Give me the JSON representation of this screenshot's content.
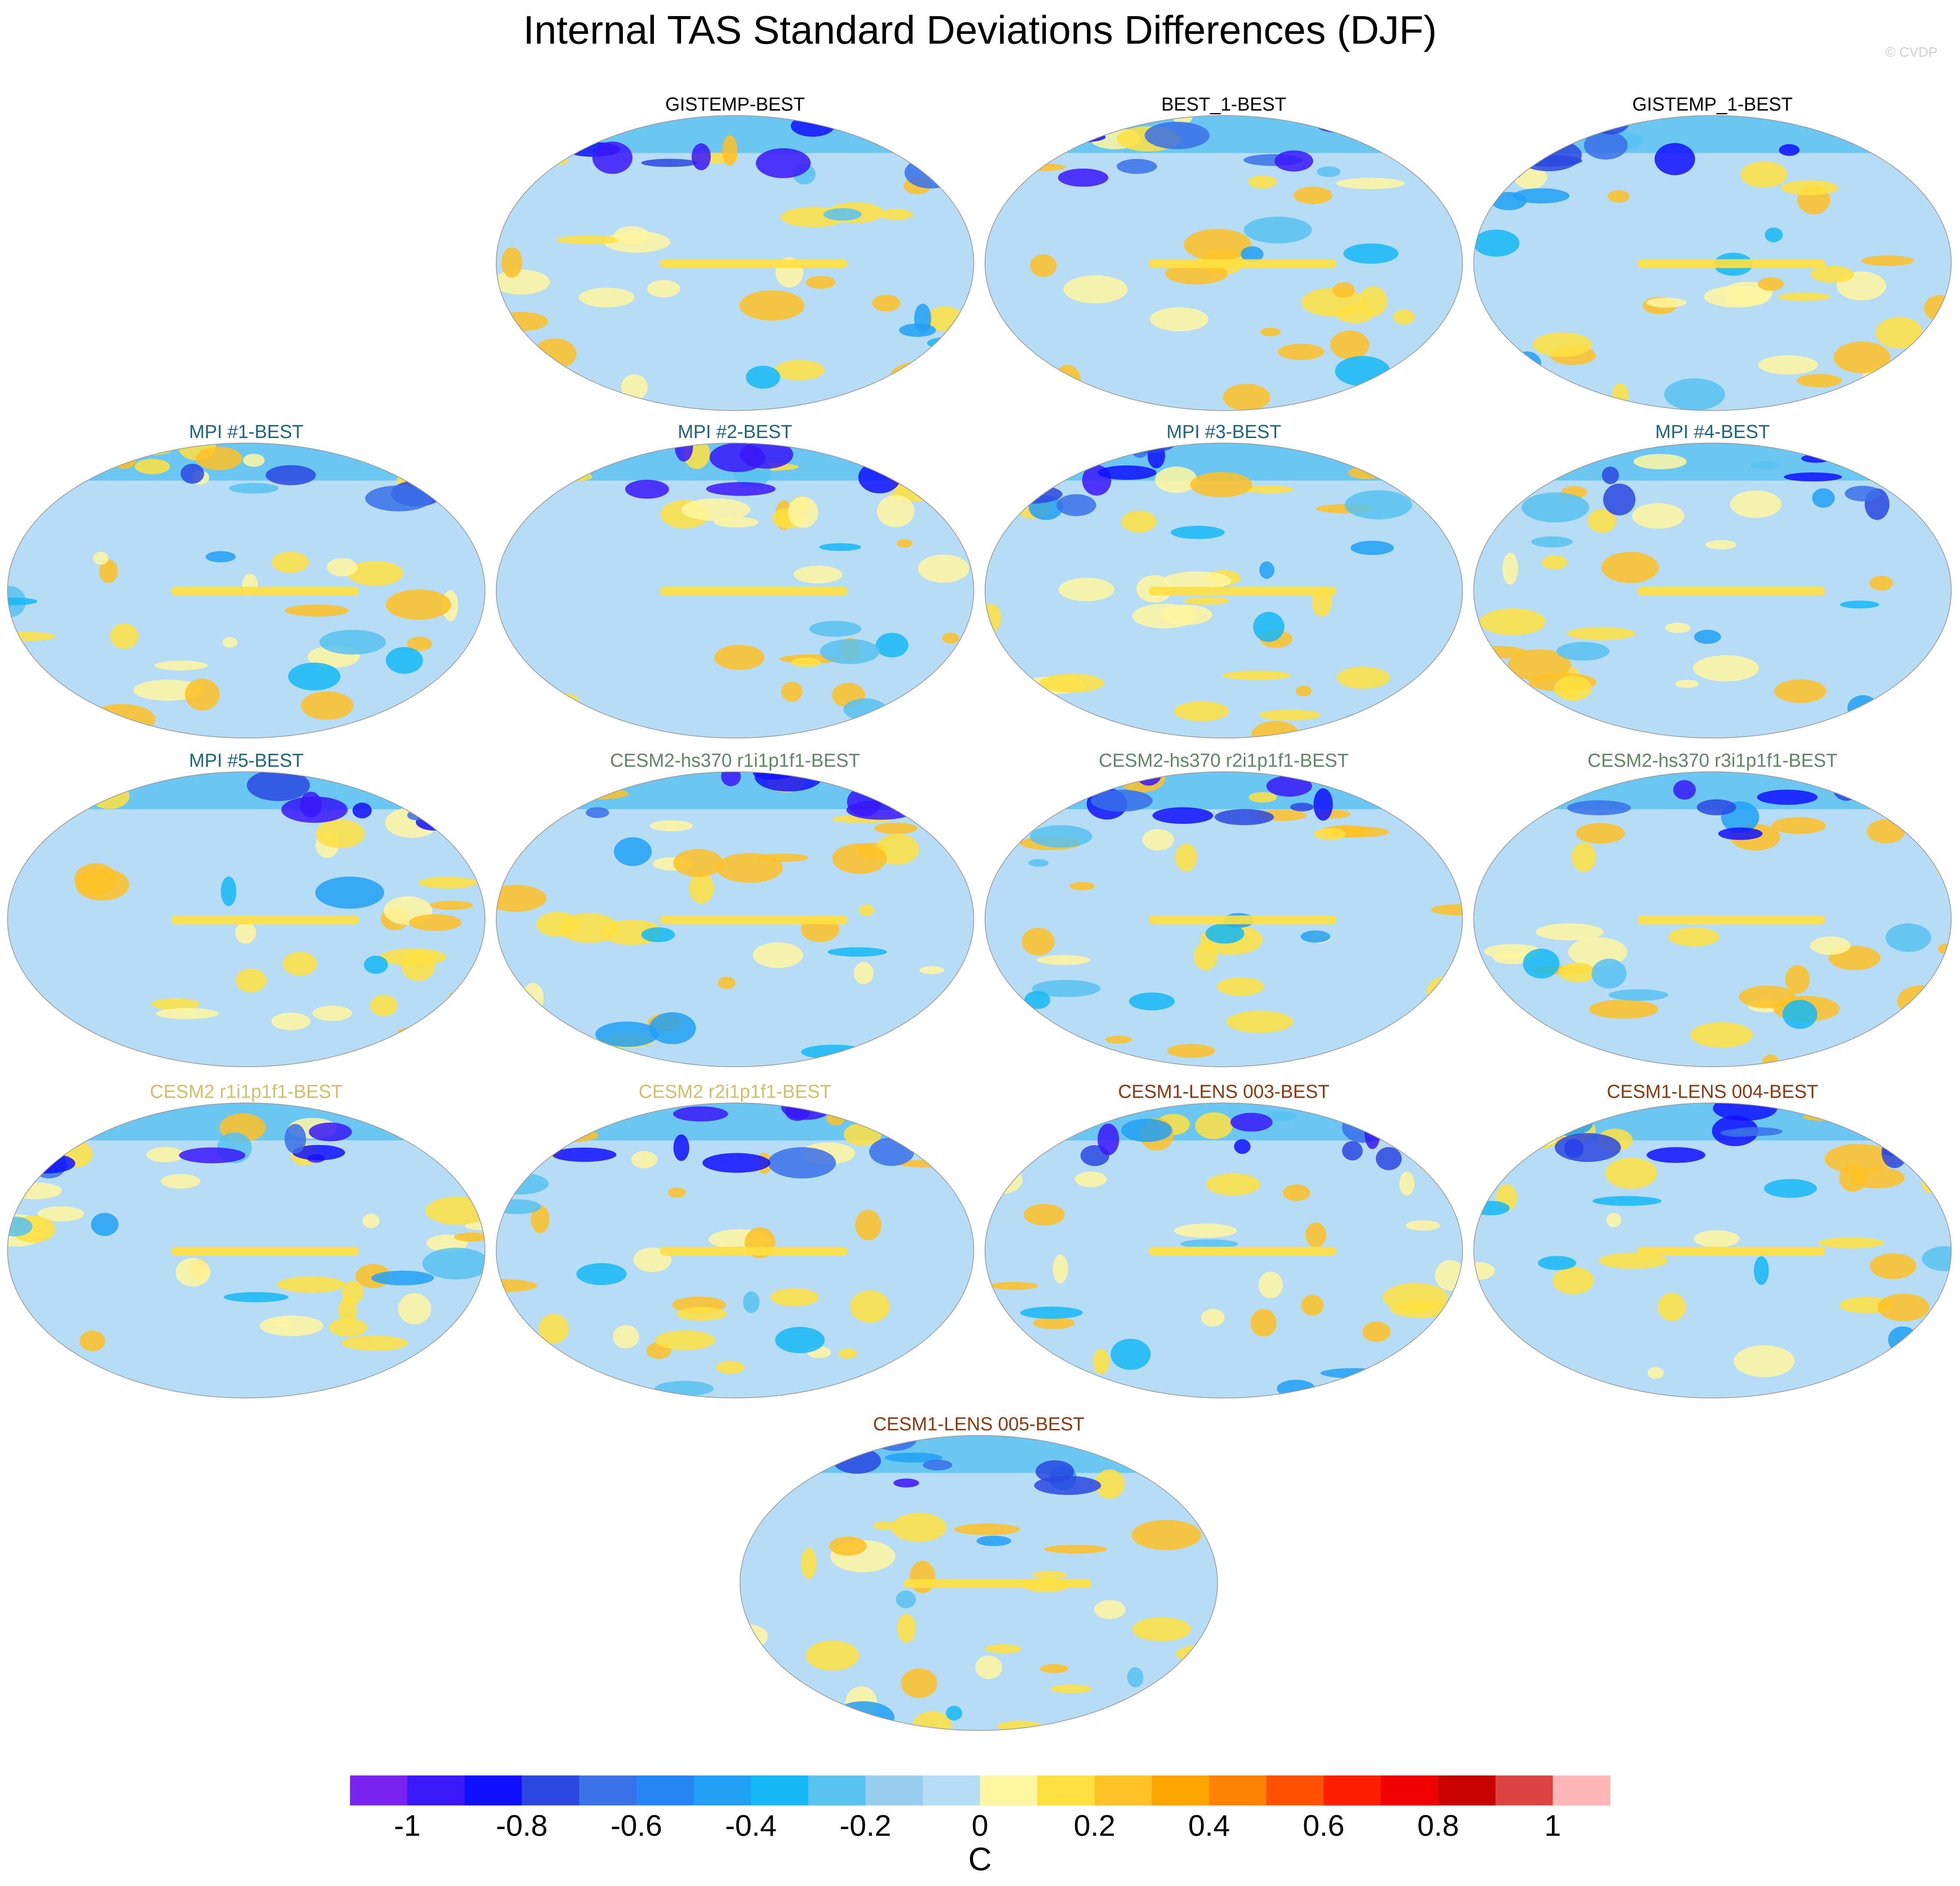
{
  "header": {
    "title": "Internal TAS Standard Deviations Differences (DJF)",
    "credit": "© CVDP"
  },
  "panels": [
    {
      "title": "GISTEMP-BEST",
      "title_color": "#000000"
    },
    {
      "title": "BEST_1-BEST",
      "title_color": "#000000"
    },
    {
      "title": "GISTEMP_1-BEST",
      "title_color": "#000000"
    },
    {
      "title": "MPI #1-BEST",
      "title_color": "#1f6680"
    },
    {
      "title": "MPI #2-BEST",
      "title_color": "#1f6680"
    },
    {
      "title": "MPI #3-BEST",
      "title_color": "#1f6680"
    },
    {
      "title": "MPI #4-BEST",
      "title_color": "#1f6680"
    },
    {
      "title": "MPI #5-BEST",
      "title_color": "#1f6680"
    },
    {
      "title": "CESM2-hs370 r1i1p1f1-BEST",
      "title_color": "#5e8a62"
    },
    {
      "title": "CESM2-hs370 r2i1p1f1-BEST",
      "title_color": "#5e8a62"
    },
    {
      "title": "CESM2-hs370 r3i1p1f1-BEST",
      "title_color": "#5e8a62"
    },
    {
      "title": "CESM2 r1i1p1f1-BEST",
      "title_color": "#d2bf6a"
    },
    {
      "title": "CESM2 r2i1p1f1-BEST",
      "title_color": "#d2bf6a"
    },
    {
      "title": "CESM1-LENS 003-BEST",
      "title_color": "#8b3a12"
    },
    {
      "title": "CESM1-LENS 004-BEST",
      "title_color": "#8b3a12"
    },
    {
      "title": "CESM1-LENS 005-BEST",
      "title_color": "#8b3a12"
    }
  ],
  "colorbar": {
    "label": "C",
    "lim": [
      -1.1,
      1.1
    ],
    "ticks": [
      -1,
      -0.8,
      -0.6,
      -0.4,
      -0.2,
      0,
      0.2,
      0.4,
      0.6,
      0.8,
      1
    ],
    "colors": [
      "#7a22f0",
      "#3a18f8",
      "#1010ff",
      "#2a48e0",
      "#3a70e8",
      "#2585f5",
      "#22a0f5",
      "#14b8f5",
      "#58c2f0",
      "#98cdf0",
      "#b6ddf5",
      "#fff6a0",
      "#ffe040",
      "#ffc125",
      "#ffa500",
      "#ff8200",
      "#ff5000",
      "#ff1e00",
      "#f00000",
      "#c80000",
      "#dc4444",
      "#ffb6b6"
    ]
  }
}
